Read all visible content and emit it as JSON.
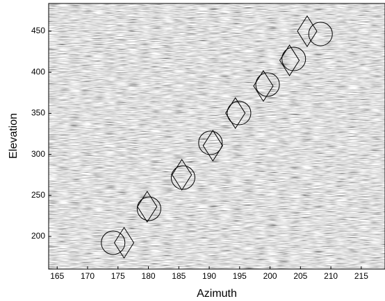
{
  "chart_data": {
    "type": "scatter",
    "x_label": "Azimuth",
    "y_label": "Elevation",
    "xlim": [
      163.6,
      218.9
    ],
    "ylim": [
      160.3,
      483.8
    ],
    "xticks": [
      165,
      170,
      175,
      180,
      185,
      190,
      195,
      200,
      205,
      210,
      215
    ],
    "yticks": [
      200,
      250,
      300,
      350,
      400,
      450
    ],
    "series": [
      {
        "marker": "circle",
        "color": "#000000",
        "x": [
          174.2,
          180.1,
          185.7,
          190.2,
          194.9,
          199.6,
          203.9,
          208.3
        ],
        "values": [
          192.4,
          233.8,
          271.8,
          314,
          350.3,
          385,
          416.2,
          446.6
        ]
      },
      {
        "marker": "diamond",
        "color": "#000000",
        "x": [
          176,
          179.8,
          185.5,
          190.6,
          194.3,
          198.9,
          203.2,
          206.1
        ],
        "values": [
          192.4,
          236.3,
          275.2,
          310.6,
          350.3,
          383.3,
          414.5,
          450
        ]
      }
    ]
  }
}
